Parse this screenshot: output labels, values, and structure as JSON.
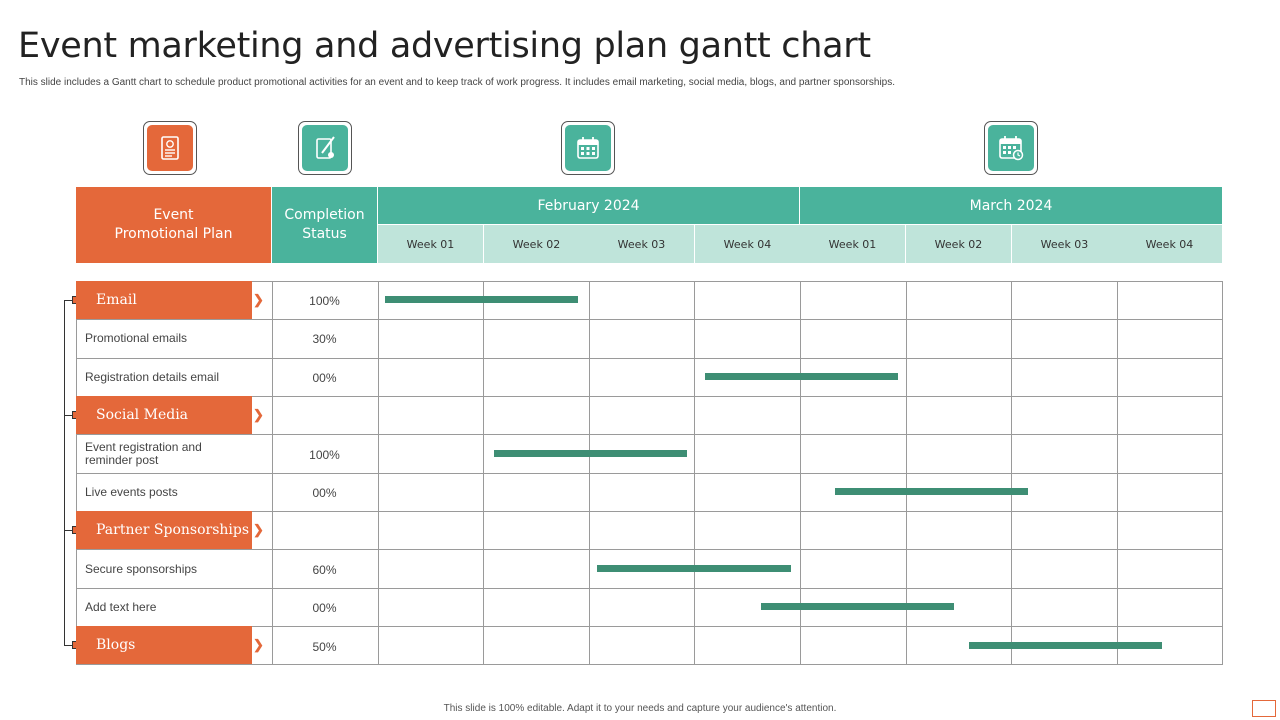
{
  "header": {
    "title": "Event marketing and advertising plan gantt chart",
    "subtitle": "This slide includes a Gantt chart to schedule product promotional activities for an event and to keep track of work progress. It includes email marketing, social media, blogs, and partner sponsorships."
  },
  "icons": [
    "document-icon",
    "pencil-edit-icon",
    "calendar-icon",
    "schedule-icon"
  ],
  "columns": {
    "plan": "Event\nPromotional Plan",
    "status": "Completion\nStatus",
    "months": [
      "February 2024",
      "March 2024"
    ],
    "weeks": [
      "Week 01",
      "Week 02",
      "Week 03",
      "Week 04",
      "Week 01",
      "Week 02",
      "Week 03",
      "Week 04"
    ]
  },
  "rows": [
    {
      "type": "category",
      "label": "Email",
      "status": "100%"
    },
    {
      "type": "task",
      "label": "Promotional emails",
      "status": "30%"
    },
    {
      "type": "task",
      "label": "Registration details email",
      "status": "00%"
    },
    {
      "type": "category",
      "label": "Social Media",
      "status": ""
    },
    {
      "type": "task",
      "label": "Event registration and\nreminder post",
      "status": "100%"
    },
    {
      "type": "task",
      "label": "Live events posts",
      "status": "00%"
    },
    {
      "type": "category",
      "label": "Partner Sponsorships",
      "status": ""
    },
    {
      "type": "task",
      "label": "Secure sponsorships",
      "status": "60%"
    },
    {
      "type": "task",
      "label": "Add text here",
      "status": "00%"
    },
    {
      "type": "category",
      "label": "Blogs",
      "status": "50%"
    }
  ],
  "bars": [
    {
      "row": 0,
      "start_week": 0.07,
      "end_week": 1.9
    },
    {
      "row": 2,
      "start_week": 3.1,
      "end_week": 4.93
    },
    {
      "row": 4,
      "start_week": 1.1,
      "end_week": 2.93
    },
    {
      "row": 5,
      "start_week": 4.33,
      "end_week": 6.16
    },
    {
      "row": 7,
      "start_week": 2.08,
      "end_week": 3.91
    },
    {
      "row": 8,
      "start_week": 3.63,
      "end_week": 5.46
    },
    {
      "row": 9,
      "start_week": 5.6,
      "end_week": 7.43
    }
  ],
  "colors": {
    "orange": "#e4683a",
    "teal": "#4ab39c",
    "light_teal": "#bfe4da",
    "bar": "#3e8e74"
  },
  "footer": "This slide is 100% editable. Adapt it to your needs and capture your audience's attention."
}
